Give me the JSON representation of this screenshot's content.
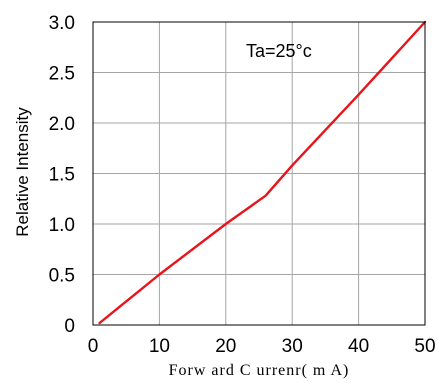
{
  "chart_data": {
    "type": "line",
    "title": "",
    "xlabel": "Forw ard C urrenr( m A)",
    "ylabel": "Relative Intensity",
    "xlim": [
      0,
      50
    ],
    "ylim": [
      0,
      3.0
    ],
    "xticks": [
      0,
      10,
      20,
      30,
      40,
      50
    ],
    "xtick_labels": [
      "0",
      "10",
      "20",
      "30",
      "40",
      "50"
    ],
    "yticks": [
      0,
      0.5,
      1.0,
      1.5,
      2.0,
      2.5,
      3.0
    ],
    "ytick_labels": [
      "0",
      "0.5",
      "1.0",
      "1.5",
      "2.0",
      "2.5",
      "3.0"
    ],
    "grid": true,
    "annotation": "Ta=25°c",
    "series": [
      {
        "color": "#e8141b",
        "x": [
          1,
          10,
          20,
          26,
          30,
          40,
          50
        ],
        "y": [
          0.02,
          0.5,
          1.0,
          1.28,
          1.58,
          2.28,
          3.0
        ]
      }
    ]
  }
}
